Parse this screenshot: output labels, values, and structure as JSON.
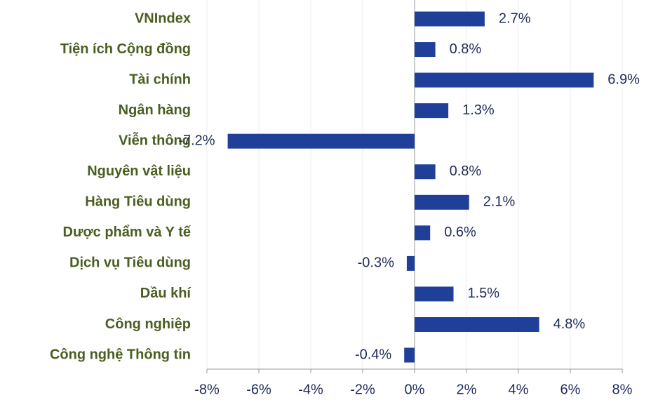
{
  "chart_data": {
    "type": "bar",
    "orientation": "horizontal",
    "categories": [
      "VNIndex",
      "Tiện ích Cộng đồng",
      "Tài chính",
      "Ngân hàng",
      "Viễn thông",
      "Nguyên vật liệu",
      "Hàng Tiêu dùng",
      "Dược phẩm và Y tế",
      "Dịch vụ Tiêu dùng",
      "Dầu khí",
      "Công nghiệp",
      "Công nghệ Thông tin"
    ],
    "values": [
      2.7,
      0.8,
      6.9,
      1.3,
      -7.2,
      0.8,
      2.1,
      0.6,
      -0.3,
      1.5,
      4.8,
      -0.4
    ],
    "value_labels": [
      "2.7%",
      "0.8%",
      "6.9%",
      "1.3%",
      "-7.2%",
      "0.8%",
      "2.1%",
      "0.6%",
      "-0.3%",
      "1.5%",
      "4.8%",
      "-0.4%"
    ],
    "color": "#1f3f99",
    "xlim": [
      -8,
      8
    ],
    "xticks": [
      {
        "value": -8,
        "label": "-8%"
      },
      {
        "value": -6,
        "label": "-6%"
      },
      {
        "value": -4,
        "label": "-4%"
      },
      {
        "value": -2,
        "label": "-2%"
      },
      {
        "value": 0,
        "label": "0%"
      },
      {
        "value": 2,
        "label": "2%"
      },
      {
        "value": 4,
        "label": "4%"
      },
      {
        "value": 6,
        "label": "6%"
      },
      {
        "value": 8,
        "label": "8%"
      }
    ],
    "grid": true
  }
}
